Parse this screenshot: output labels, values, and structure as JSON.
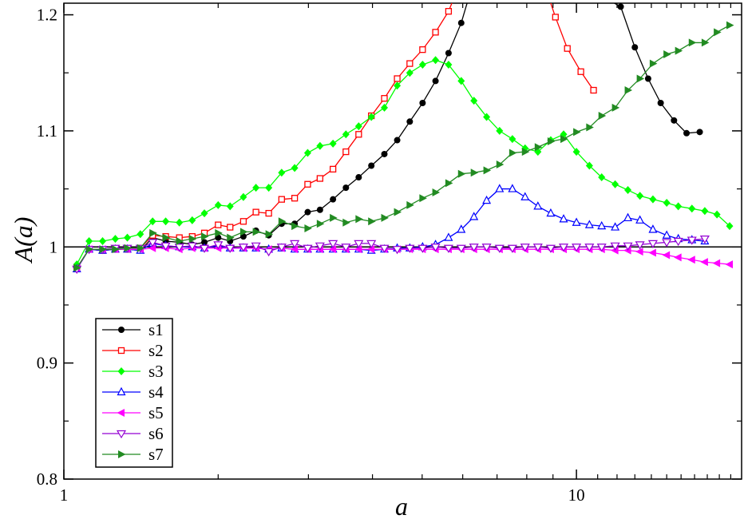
{
  "chart_data": {
    "type": "line",
    "xlabel": "a",
    "ylabel": "A(a)",
    "xscale": "log",
    "xlim": [
      1,
      21
    ],
    "ylim": [
      0.8,
      1.21
    ],
    "x_ticks": [
      {
        "value": 1,
        "label": "1"
      },
      {
        "value": 10,
        "label": "10"
      }
    ],
    "y_ticks": [
      {
        "value": 0.8,
        "label": "0.8"
      },
      {
        "value": 0.9,
        "label": "0.9"
      },
      {
        "value": 1.0,
        "label": "1"
      },
      {
        "value": 1.1,
        "label": "1.1"
      },
      {
        "value": 1.2,
        "label": "1.2"
      }
    ],
    "reference_line": {
      "y": 1.0
    },
    "grid": false,
    "legend_position": "bottom-left",
    "series": [
      {
        "name": "s1",
        "color": "#000000",
        "marker": "circle",
        "x": [
          1.06,
          1.12,
          1.19,
          1.26,
          1.33,
          1.41,
          1.49,
          1.58,
          1.68,
          1.78,
          1.88,
          2.0,
          2.11,
          2.24,
          2.37,
          2.51,
          2.66,
          2.82,
          2.99,
          3.16,
          3.35,
          3.55,
          3.76,
          3.98,
          4.22,
          4.47,
          4.73,
          5.01,
          5.31,
          5.63,
          5.96,
          6.31,
          6.68,
          12.2,
          13.0,
          13.8,
          14.6,
          15.5,
          16.4,
          17.4
        ],
        "y": [
          0.982,
          0.998,
          0.997,
          0.998,
          0.998,
          0.997,
          1.008,
          1.005,
          1.004,
          1.002,
          1.004,
          1.008,
          1.005,
          1.009,
          1.014,
          1.01,
          1.02,
          1.02,
          1.03,
          1.032,
          1.041,
          1.051,
          1.06,
          1.07,
          1.08,
          1.092,
          1.108,
          1.124,
          1.143,
          1.167,
          1.193,
          1.23,
          1.27,
          1.207,
          1.172,
          1.145,
          1.124,
          1.109,
          1.098,
          1.099
        ]
      },
      {
        "name": "s2",
        "color": "#ff0000",
        "marker": "square-open",
        "x": [
          1.06,
          1.12,
          1.19,
          1.26,
          1.33,
          1.41,
          1.49,
          1.58,
          1.68,
          1.78,
          1.88,
          2.0,
          2.11,
          2.24,
          2.37,
          2.51,
          2.66,
          2.82,
          2.99,
          3.16,
          3.35,
          3.55,
          3.76,
          3.98,
          4.22,
          4.47,
          4.73,
          5.01,
          5.31,
          5.63,
          5.96,
          6.31,
          8.6,
          9.1,
          9.6,
          10.2,
          10.8
        ],
        "y": [
          0.982,
          0.998,
          0.997,
          0.998,
          0.998,
          0.999,
          1.01,
          1.009,
          1.008,
          1.009,
          1.012,
          1.019,
          1.017,
          1.022,
          1.03,
          1.029,
          1.041,
          1.042,
          1.054,
          1.059,
          1.067,
          1.082,
          1.097,
          1.113,
          1.128,
          1.145,
          1.158,
          1.17,
          1.185,
          1.203,
          1.23,
          1.26,
          1.23,
          1.198,
          1.171,
          1.151,
          1.135
        ]
      },
      {
        "name": "s3",
        "color": "#00ff00",
        "marker": "diamond",
        "x": [
          1.06,
          1.12,
          1.19,
          1.26,
          1.33,
          1.41,
          1.49,
          1.58,
          1.68,
          1.78,
          1.88,
          2.0,
          2.11,
          2.24,
          2.37,
          2.51,
          2.66,
          2.82,
          2.99,
          3.16,
          3.35,
          3.55,
          3.76,
          3.98,
          4.22,
          4.47,
          4.73,
          5.01,
          5.31,
          5.63,
          5.96,
          6.31,
          6.68,
          7.08,
          7.5,
          7.94,
          8.41,
          8.91,
          9.44,
          10.0,
          10.6,
          11.2,
          11.9,
          12.6,
          13.3,
          14.1,
          15.0,
          15.8,
          16.8,
          17.8,
          18.8,
          19.9
        ],
        "y": [
          0.985,
          1.005,
          1.005,
          1.007,
          1.008,
          1.011,
          1.022,
          1.022,
          1.021,
          1.023,
          1.029,
          1.036,
          1.035,
          1.043,
          1.051,
          1.051,
          1.064,
          1.068,
          1.081,
          1.087,
          1.089,
          1.097,
          1.104,
          1.112,
          1.12,
          1.139,
          1.15,
          1.157,
          1.161,
          1.157,
          1.143,
          1.126,
          1.112,
          1.1,
          1.093,
          1.085,
          1.082,
          1.092,
          1.097,
          1.082,
          1.07,
          1.06,
          1.054,
          1.049,
          1.044,
          1.041,
          1.038,
          1.035,
          1.033,
          1.031,
          1.028,
          1.018
        ]
      },
      {
        "name": "s4",
        "color": "#0000ff",
        "marker": "triangle-up-open",
        "x": [
          1.06,
          1.12,
          1.19,
          1.26,
          1.33,
          1.41,
          1.49,
          1.58,
          1.68,
          1.78,
          1.88,
          2.0,
          2.11,
          2.24,
          2.37,
          2.51,
          2.66,
          2.82,
          2.99,
          3.16,
          3.35,
          3.55,
          3.76,
          3.98,
          4.22,
          4.47,
          4.73,
          5.01,
          5.31,
          5.63,
          5.96,
          6.31,
          6.68,
          7.08,
          7.5,
          7.94,
          8.41,
          8.91,
          9.44,
          10.0,
          10.6,
          11.2,
          11.9,
          12.6,
          13.3,
          14.1,
          15.0,
          15.8,
          16.8,
          17.8
        ],
        "y": [
          0.981,
          0.998,
          0.997,
          0.998,
          0.998,
          0.997,
          1.003,
          1.001,
          1.0,
          1.0,
          0.999,
          1.001,
          0.999,
          0.999,
          0.999,
          0.998,
          0.999,
          0.998,
          0.998,
          0.998,
          0.998,
          0.998,
          0.998,
          0.997,
          0.998,
          0.999,
          0.999,
          1.0,
          1.002,
          1.008,
          1.015,
          1.026,
          1.04,
          1.05,
          1.05,
          1.043,
          1.035,
          1.029,
          1.024,
          1.021,
          1.019,
          1.018,
          1.017,
          1.025,
          1.023,
          1.015,
          1.01,
          1.007,
          1.006,
          1.005
        ]
      },
      {
        "name": "s5",
        "color": "#ff00ff",
        "marker": "triangle-left",
        "x": [
          1.06,
          1.12,
          1.19,
          1.26,
          1.33,
          1.41,
          1.49,
          1.58,
          1.68,
          1.78,
          1.88,
          2.0,
          2.11,
          2.24,
          2.37,
          2.51,
          2.66,
          2.82,
          2.99,
          3.16,
          3.35,
          3.55,
          3.76,
          3.98,
          4.22,
          4.47,
          4.73,
          5.01,
          5.31,
          5.63,
          5.96,
          6.31,
          6.68,
          7.08,
          7.5,
          7.94,
          8.41,
          8.91,
          9.44,
          10.0,
          10.6,
          11.2,
          11.9,
          12.6,
          13.3,
          14.1,
          15.0,
          15.8,
          16.8,
          17.8,
          18.8,
          19.9
        ],
        "y": [
          0.982,
          0.998,
          0.998,
          0.998,
          0.998,
          0.998,
          0.999,
          0.999,
          0.998,
          0.999,
          0.999,
          0.999,
          0.999,
          0.999,
          0.999,
          0.998,
          0.999,
          0.998,
          0.998,
          0.998,
          0.998,
          0.998,
          0.998,
          0.998,
          0.998,
          0.998,
          0.998,
          0.998,
          0.998,
          0.998,
          0.998,
          0.998,
          0.998,
          0.998,
          0.998,
          0.998,
          0.998,
          0.998,
          0.998,
          0.998,
          0.998,
          0.998,
          0.997,
          0.997,
          0.996,
          0.995,
          0.993,
          0.991,
          0.989,
          0.987,
          0.986,
          0.985
        ]
      },
      {
        "name": "s6",
        "color": "#9400d3",
        "marker": "triangle-down-open",
        "x": [
          1.06,
          1.12,
          1.19,
          1.26,
          1.33,
          1.41,
          1.49,
          1.58,
          1.68,
          1.78,
          1.88,
          2.0,
          2.11,
          2.24,
          2.37,
          2.51,
          2.66,
          2.82,
          2.99,
          3.16,
          3.35,
          3.55,
          3.76,
          3.98,
          4.22,
          4.47,
          4.73,
          5.01,
          5.31,
          5.63,
          5.96,
          6.31,
          6.68,
          7.08,
          7.5,
          7.94,
          8.41,
          8.91,
          9.44,
          10.0,
          10.6,
          11.2,
          11.9,
          12.6,
          13.3,
          14.1,
          15.0,
          15.8,
          16.8,
          17.8
        ],
        "y": [
          0.981,
          0.998,
          0.998,
          0.999,
          0.999,
          0.999,
          1.004,
          1.001,
          1.0,
          1.001,
          0.999,
          1.002,
          0.999,
          1.0,
          1.001,
          0.996,
          1.0,
          1.003,
          0.999,
          1.001,
          1.003,
          1.0,
          1.003,
          1.003,
          0.999,
          0.998,
          0.999,
          0.999,
          1.0,
          0.999,
          0.999,
          1.0,
          1.0,
          0.999,
          0.999,
          1.0,
          1.0,
          0.999,
          1.0,
          1.0,
          1.0,
          1.0,
          1.001,
          1.001,
          1.002,
          1.003,
          1.004,
          1.005,
          1.006,
          1.007
        ]
      },
      {
        "name": "s7",
        "color": "#228b22",
        "marker": "triangle-right",
        "x": [
          1.06,
          1.12,
          1.19,
          1.26,
          1.33,
          1.41,
          1.49,
          1.58,
          1.68,
          1.78,
          1.88,
          2.0,
          2.11,
          2.24,
          2.37,
          2.51,
          2.66,
          2.82,
          2.99,
          3.16,
          3.35,
          3.55,
          3.76,
          3.98,
          4.22,
          4.47,
          4.73,
          5.01,
          5.31,
          5.63,
          5.96,
          6.31,
          6.68,
          7.08,
          7.5,
          7.94,
          8.41,
          8.91,
          9.44,
          10.0,
          10.6,
          11.2,
          11.9,
          12.6,
          13.3,
          14.1,
          15.0,
          15.8,
          16.8,
          17.8,
          18.8,
          19.9
        ],
        "y": [
          0.982,
          0.998,
          0.998,
          0.998,
          0.999,
          0.999,
          1.012,
          1.008,
          1.005,
          1.007,
          1.009,
          1.012,
          1.008,
          1.013,
          1.013,
          1.011,
          1.022,
          1.018,
          1.016,
          1.02,
          1.025,
          1.021,
          1.024,
          1.022,
          1.025,
          1.03,
          1.036,
          1.042,
          1.047,
          1.055,
          1.063,
          1.064,
          1.066,
          1.071,
          1.081,
          1.082,
          1.086,
          1.091,
          1.093,
          1.099,
          1.103,
          1.113,
          1.12,
          1.135,
          1.145,
          1.158,
          1.166,
          1.169,
          1.176,
          1.176,
          1.185,
          1.191
        ]
      }
    ]
  }
}
